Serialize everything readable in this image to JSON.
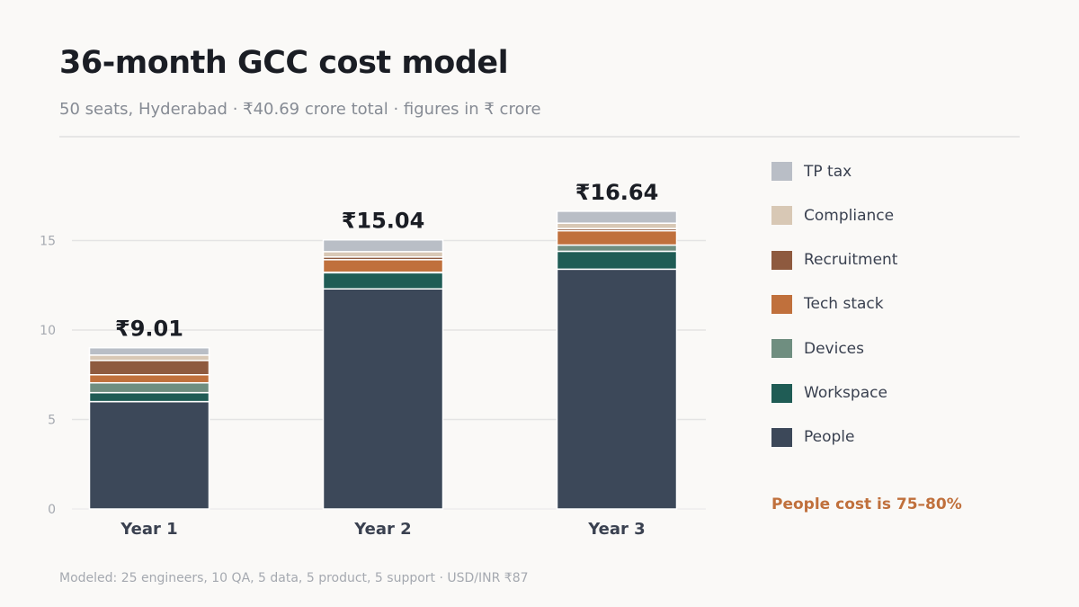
{
  "header": {
    "title": "36-month GCC cost model",
    "subtitle": "50 seats, Hyderabad · ₹40.69 crore total · figures in ₹ crore"
  },
  "chart_data": {
    "type": "bar",
    "stacked": true,
    "categories": [
      "Year 1",
      "Year 2",
      "Year 3"
    ],
    "totals": [
      9.01,
      15.04,
      16.64
    ],
    "total_labels": [
      "₹9.01",
      "₹15.04",
      "₹16.64"
    ],
    "y_ticks": [
      0,
      5,
      10,
      15
    ],
    "ylim": [
      0,
      19
    ],
    "grid": true,
    "legend_position": "right",
    "series": [
      {
        "name": "People",
        "color": "#3c4859",
        "values": [
          6.0,
          12.3,
          13.4
        ]
      },
      {
        "name": "Workspace",
        "color": "#1f5c55",
        "values": [
          0.5,
          0.9,
          1.0
        ]
      },
      {
        "name": "Devices",
        "color": "#6f8e80",
        "values": [
          0.55,
          0.03,
          0.35
        ]
      },
      {
        "name": "Tech stack",
        "color": "#c0703c",
        "values": [
          0.45,
          0.7,
          0.8
        ]
      },
      {
        "name": "Recruitment",
        "color": "#8e5a3f",
        "values": [
          0.8,
          0.15,
          0.12
        ]
      },
      {
        "name": "Compliance",
        "color": "#d8c8b5",
        "values": [
          0.3,
          0.3,
          0.3
        ]
      },
      {
        "name": "TP tax",
        "color": "#b9bec6",
        "values": [
          0.41,
          0.66,
          0.67
        ]
      }
    ]
  },
  "note": "People cost is 75–80%",
  "footer": "Modeled: 25 engineers, 10 QA, 5 data, 5 product, 5 support · USD/INR ₹87"
}
